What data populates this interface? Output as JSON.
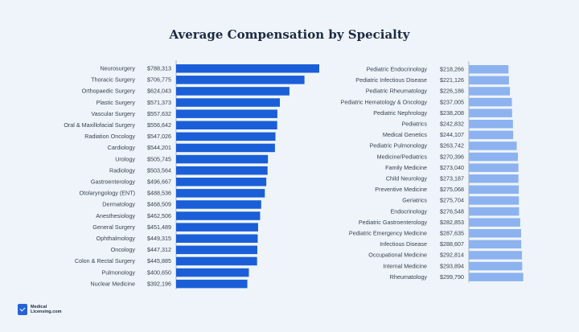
{
  "chart_data": [
    {
      "type": "bar",
      "orientation": "horizontal",
      "title": "Average Compensation by Specialty",
      "color": "#1a5ed8",
      "categories": [
        "Neurosurgery",
        "Thoracic Surgery",
        "Orthopaedic Surgery",
        "Plastic Surgery",
        "Vascular Surgery",
        "Oral & Maxillofacial Surgery",
        "Radiation Oncology",
        "Cardiology",
        "Urology",
        "Radiology",
        "Gastroenterology",
        "Otolaryngology (ENT)",
        "Dermatology",
        "Anesthesiology",
        "General Surgery",
        "Ophthalmology",
        "Oncology",
        "Colon & Rectal Surgery",
        "Pulmonology",
        "Nuclear Medicine"
      ],
      "values": [
        788313,
        706775,
        624043,
        571373,
        557632,
        556642,
        547026,
        544201,
        505745,
        503564,
        496667,
        488536,
        468509,
        462506,
        451489,
        449315,
        447312,
        445885,
        400650,
        392196
      ],
      "value_labels": [
        "$788,313",
        "$706,775",
        "$624,043",
        "$571,373",
        "$557,632",
        "$556,642",
        "$547,026",
        "$544,201",
        "$505,745",
        "$503,564",
        "$496,667",
        "$488,536",
        "$468,509",
        "$462,506",
        "$451,489",
        "$449,315",
        "$447,312",
        "$445,885",
        "$400,650",
        "$392,196"
      ]
    },
    {
      "type": "bar",
      "orientation": "horizontal",
      "color": "#8db2f0",
      "categories": [
        "Pediatric Endocrinology",
        "Pediatric Infectious Disease",
        "Pediatric Rheumatology",
        "Pediatric Hematology & Oncology",
        "Pediatric Nephrology",
        "Pediatrics",
        "Medical Genetics",
        "Pediatric Pulmonology",
        "Medicine/Pediatrics",
        "Family Medicine",
        "Child Neurology",
        "Preventive Medicine",
        "Geriatrics",
        "Endocrinology",
        "Pediatric Gastroenterology",
        "Pediatric Emergency Medicine",
        "Infectious Disease",
        "Occupational Medicine",
        "Internal Medicine",
        "Rheumatology"
      ],
      "values": [
        218266,
        221126,
        226186,
        237005,
        238208,
        242832,
        244107,
        263742,
        270396,
        273040,
        273187,
        275068,
        275704,
        276548,
        282853,
        287635,
        288607,
        292814,
        293894,
        299790
      ],
      "value_labels": [
        "$218,266",
        "$221,126",
        "$226,186",
        "$237,005",
        "$238,208",
        "$242,832",
        "$244,107",
        "$263,742",
        "$270,396",
        "$273,040",
        "$273,187",
        "$275,068",
        "$275,704",
        "$276,548",
        "$282,853",
        "$287,635",
        "$288,607",
        "$292,814",
        "$293,894",
        "$299,790"
      ]
    }
  ],
  "logo": {
    "text": "MedicalLicensing.com"
  }
}
